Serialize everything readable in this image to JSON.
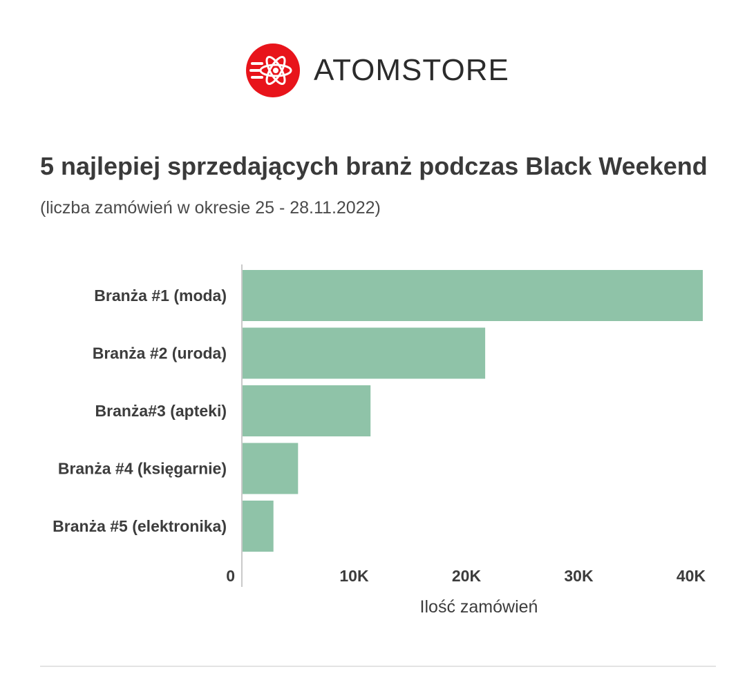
{
  "logo": {
    "text": "ATOMSTORE",
    "icon": "atom-icon",
    "color": "#e8141b"
  },
  "header": {
    "title": "5 najlepiej sprzedających branż podczas Black Weekend",
    "subtitle": "(liczba zamówień w okresie 25 - 28.11.2022)"
  },
  "chart_data": {
    "type": "bar",
    "orientation": "horizontal",
    "categories": [
      "Branża #1 (moda)",
      "Branża #2 (uroda)",
      "Branża#3 (apteki)",
      "Branża #4 (księgarnie)",
      "Branża #5 (elektronika)"
    ],
    "values": [
      39400,
      20800,
      11000,
      4800,
      2700
    ],
    "xlabel": "Ilość zamówień",
    "ylabel": "",
    "xlim": [
      0,
      40000
    ],
    "xticks": [
      0,
      10000,
      20000,
      30000,
      40000
    ],
    "xtick_labels": [
      "0",
      "10K",
      "20K",
      "30K",
      "40K"
    ],
    "bar_color": "#8fc3a8",
    "grid": false,
    "legend": "none"
  }
}
